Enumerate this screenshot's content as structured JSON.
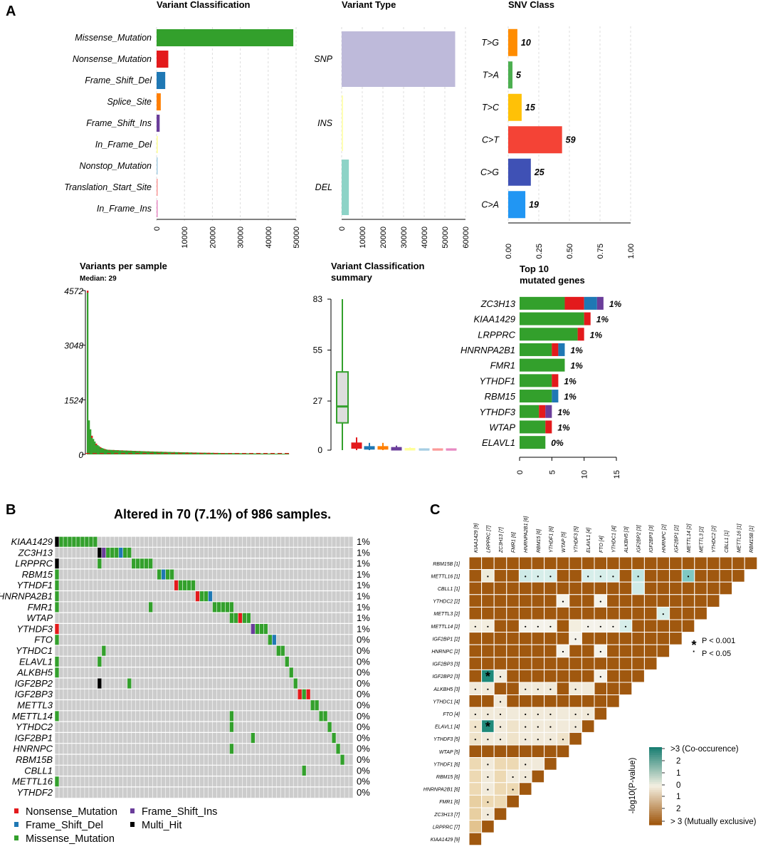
{
  "figure": {
    "panel_labels": [
      "A",
      "B",
      "C"
    ]
  },
  "colors": {
    "missense": "#33A02C",
    "nonsense": "#E31A1C",
    "frame_shift_del": "#1F78B4",
    "splice_site": "#FF7F00",
    "frame_shift_ins": "#6A3D9A",
    "in_frame_del": "#FFFF99",
    "nonstop": "#A6CEE3",
    "translation_start": "#FB9A99",
    "in_frame_ins": "#E78AC3",
    "multi_hit": "#000000",
    "snp": "#BEBADA",
    "ins": "#FFFFB3",
    "del": "#8DD3C7",
    "cell_bg": "#CCCCCC",
    "brown": "#A0580F",
    "teal": "#1B7F73",
    "neutral": "#F4F0E2"
  },
  "chart_data": [
    {
      "type": "bar",
      "title": "Variant Classification",
      "orientation": "horizontal",
      "categories": [
        "Missense_Mutation",
        "Nonsense_Mutation",
        "Frame_Shift_Del",
        "Splice_Site",
        "Frame_Shift_Ins",
        "In_Frame_Del",
        "Nonstop_Mutation",
        "Translation_Start_Site",
        "In_Frame_Ins"
      ],
      "values": [
        49000,
        4200,
        3100,
        1500,
        1100,
        420,
        80,
        60,
        40
      ],
      "xlim": [
        0,
        50000
      ],
      "ticks": [
        "0",
        "10000",
        "20000",
        "30000",
        "40000",
        "50000"
      ],
      "tick_values": [
        0,
        10000,
        20000,
        30000,
        40000,
        50000
      ]
    },
    {
      "type": "bar",
      "title": "Variant Type",
      "orientation": "horizontal",
      "categories": [
        "SNP",
        "INS",
        "DEL"
      ],
      "values": [
        55000,
        700,
        3500
      ],
      "xlim": [
        0,
        60000
      ],
      "ticks": [
        "0",
        "10000",
        "20000",
        "30000",
        "40000",
        "50000",
        "60000"
      ],
      "tick_values": [
        0,
        10000,
        20000,
        30000,
        40000,
        50000,
        60000
      ]
    },
    {
      "type": "bar",
      "title": "SNV Class",
      "orientation": "horizontal",
      "categories": [
        "T>G",
        "T>A",
        "T>C",
        "C>T",
        "C>G",
        "C>A"
      ],
      "values": [
        0.075,
        0.035,
        0.11,
        0.44,
        0.185,
        0.14
      ],
      "labels": [
        "10",
        "5",
        "15",
        "59",
        "25",
        "19"
      ],
      "xlim": [
        0,
        1
      ],
      "ticks": [
        "0.00",
        "0.25",
        "0.50",
        "0.75",
        "1.00"
      ],
      "tick_values": [
        0,
        0.25,
        0.5,
        0.75,
        1.0
      ]
    },
    {
      "type": "bar",
      "title": "Variants per sample",
      "subtitle": "Median: 29",
      "ylim": [
        0,
        4572
      ],
      "ticks": [
        "0",
        "1524",
        "3048",
        "4572"
      ],
      "tick_values": [
        0,
        1524,
        3048,
        4572
      ],
      "median": 29,
      "top_values": [
        4572,
        950,
        700,
        520,
        430,
        360,
        300,
        260,
        230,
        200,
        180,
        165,
        150,
        140,
        130
      ]
    },
    {
      "type": "box",
      "title": "Variant Classification",
      "title_line2": "summary",
      "ylim": [
        0,
        83
      ],
      "ticks": [
        "0",
        "27",
        "55",
        "83"
      ],
      "tick_values": [
        0,
        27,
        55,
        83
      ],
      "boxes": [
        {
          "name": "Missense_Mutation",
          "min": 0,
          "q1": 15,
          "median": 24,
          "q3": 43,
          "max": 83
        },
        {
          "name": "Nonsense_Mutation",
          "min": 0,
          "q1": 1,
          "median": 2,
          "q3": 4,
          "max": 7
        },
        {
          "name": "Frame_Shift_Del",
          "min": 0,
          "q1": 0.5,
          "median": 1,
          "q3": 2,
          "max": 4
        },
        {
          "name": "Splice_Site",
          "min": 0,
          "q1": 0.5,
          "median": 1,
          "q3": 2,
          "max": 4
        },
        {
          "name": "Frame_Shift_Ins",
          "min": 0,
          "q1": 0,
          "median": 1,
          "q3": 1.5,
          "max": 2.5
        },
        {
          "name": "In_Frame_Del",
          "min": 0,
          "q1": 0,
          "median": 0.5,
          "q3": 1,
          "max": 1.5
        },
        {
          "name": "Nonstop_Mutation",
          "min": 0,
          "q1": 0,
          "median": 0.3,
          "q3": 0.8,
          "max": 1
        },
        {
          "name": "Translation_Start_Site",
          "min": 0,
          "q1": 0,
          "median": 0.3,
          "q3": 0.8,
          "max": 1
        },
        {
          "name": "In_Frame_Ins",
          "min": 0,
          "q1": 0,
          "median": 0.3,
          "q3": 0.8,
          "max": 1
        }
      ]
    },
    {
      "type": "bar",
      "title": "Top 10",
      "title_line2": "mutated genes",
      "orientation": "horizontal",
      "xlim": [
        0,
        15
      ],
      "ticks": [
        "0",
        "5",
        "10",
        "15"
      ],
      "tick_values": [
        0,
        5,
        10,
        15
      ],
      "genes": [
        {
          "name": "ZC3H13",
          "pct": "1%",
          "segments": [
            7,
            3,
            2,
            1
          ]
        },
        {
          "name": "KIAA1429",
          "pct": "1%",
          "segments": [
            10,
            1,
            0,
            0
          ]
        },
        {
          "name": "LRPPRC",
          "pct": "1%",
          "segments": [
            9,
            1,
            0,
            0
          ]
        },
        {
          "name": "HNRNPA2B1",
          "pct": "1%",
          "segments": [
            5,
            1,
            1,
            0
          ]
        },
        {
          "name": "FMR1",
          "pct": "1%",
          "segments": [
            7,
            0,
            0,
            0
          ]
        },
        {
          "name": "YTHDF1",
          "pct": "1%",
          "segments": [
            5,
            1,
            0,
            0
          ]
        },
        {
          "name": "RBM15",
          "pct": "1%",
          "segments": [
            5,
            0,
            1,
            0
          ]
        },
        {
          "name": "YTHDF3",
          "pct": "1%",
          "segments": [
            3,
            1,
            0,
            1
          ]
        },
        {
          "name": "WTAP",
          "pct": "1%",
          "segments": [
            4,
            1,
            0,
            0
          ]
        },
        {
          "name": "ELAVL1",
          "pct": "0%",
          "segments": [
            4,
            0,
            0,
            0
          ]
        }
      ]
    },
    {
      "type": "heatmap",
      "title": "Altered in 70 (7.1%) of 986 samples.",
      "genes": [
        "KIAA1429",
        "ZC3H13",
        "LRPPRC",
        "RBM15",
        "YTHDF1",
        "HNRNPA2B1",
        "FMR1",
        "WTAP",
        "YTHDF3",
        "FTO",
        "YTHDC1",
        "ELAVL1",
        "ALKBH5",
        "IGF2BP2",
        "IGF2BP3",
        "METTL3",
        "METTL14",
        "YTHDC2",
        "IGF2BP1",
        "HNRNPC",
        "RBM15B",
        "CBLL1",
        "METTL16",
        "YTHDF2"
      ],
      "percentages": [
        "1%",
        "1%",
        "1%",
        "1%",
        "1%",
        "1%",
        "1%",
        "1%",
        "1%",
        "0%",
        "0%",
        "0%",
        "0%",
        "0%",
        "0%",
        "0%",
        "0%",
        "0%",
        "0%",
        "0%",
        "0%",
        "0%",
        "0%",
        "0%"
      ],
      "n_columns": 70,
      "legend": [
        {
          "label": "Nonsense_Mutation",
          "color": "#E31A1C"
        },
        {
          "label": "Frame_Shift_Del",
          "color": "#1F78B4"
        },
        {
          "label": "Missense_Mutation",
          "color": "#33A02C"
        },
        {
          "label": "Frame_Shift_Ins",
          "color": "#6A3D9A"
        },
        {
          "label": "Multi_Hit",
          "color": "#000000"
        }
      ]
    },
    {
      "type": "heatmap",
      "subtype": "somatic-interactions",
      "col_labels": [
        "KIAA1429 [9]",
        "LRPPRC [7]",
        "ZC3H13 [7]",
        "FMR1 [6]",
        "HNRNPA2B1 [6]",
        "RBM15 [6]",
        "YTHDF1 [6]",
        "WTAP [5]",
        "YTHDF3 [5]",
        "ELAVL1 [4]",
        "FTO [4]",
        "YTHDC1 [4]",
        "ALKBH5 [3]",
        "IGF2BP2 [3]",
        "IGF2BP3 [3]",
        "HNRNPC [2]",
        "IGF2BP1 [2]",
        "METTL14 [2]",
        "METTL3 [2]",
        "YTHDC2 [2]",
        "CBLL1 [1]",
        "METTL16 [1]",
        "RBM15B [1]"
      ],
      "row_labels": [
        "RBM15B [1]",
        "METTL16 [1]",
        "CBLL1 [1]",
        "YTHDC2 [2]",
        "METTL3 [2]",
        "METTL14 [2]",
        "IGF2BP1 [2]",
        "HNRNPC [2]",
        "IGF2BP3 [3]",
        "IGF2BP2 [3]",
        "ALKBH5 [3]",
        "YTHDC1 [4]",
        "FTO [4]",
        "ELAVL1 [4]",
        "YTHDF3 [5]",
        "WTAP [5]",
        "YTHDF1 [6]",
        "RBM15 [6]",
        "HNRNPA2B1 [6]",
        "FMR1 [6]",
        "ZC3H13 [7]",
        "LRPPRC [7]",
        "KIAA1429 [9]"
      ],
      "sig_legend": [
        {
          "symbol": "*",
          "label": "P < 0.001"
        },
        {
          "symbol": "·",
          "label": "P < 0.05"
        }
      ],
      "colorbar": {
        "title": "-log10(P-value)",
        "labels": [
          ">3 (Co-occurence)",
          "2",
          "1",
          "0",
          "1",
          "2",
          "> 3 (Mutually exclusive)"
        ]
      }
    }
  ]
}
